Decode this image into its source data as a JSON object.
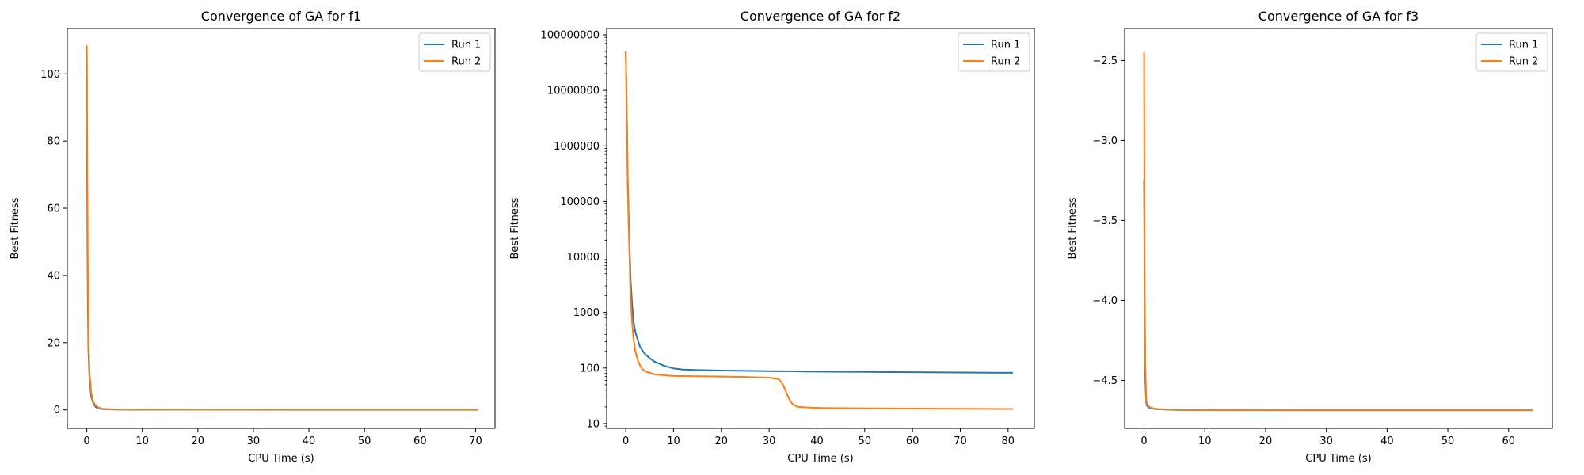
{
  "chart_data": [
    {
      "type": "line",
      "title": "Convergence of GA for f1",
      "xlabel": "CPU Time (s)",
      "ylabel": "Best Fitness",
      "xlim": [
        -3.5,
        73.5
      ],
      "ylim": [
        -5.5,
        113.5
      ],
      "yscale": "linear",
      "xticks": [
        0,
        10,
        20,
        30,
        40,
        50,
        60,
        70
      ],
      "yticks": [
        0,
        20,
        40,
        60,
        80,
        100
      ],
      "grid": false,
      "legend": "top-right",
      "series": [
        {
          "name": "Run 1",
          "color": "#1f77b4",
          "x": [
            0,
            0.05,
            0.1,
            0.2,
            0.3,
            0.5,
            0.8,
            1.2,
            1.6,
            2.0,
            2.5,
            3,
            5,
            10,
            20,
            40,
            60,
            70.5
          ],
          "y": [
            108,
            80,
            55,
            30,
            18,
            9,
            4,
            1.8,
            0.9,
            0.5,
            0.3,
            0.2,
            0.1,
            0.05,
            0.03,
            0.02,
            0.02,
            0.02
          ]
        },
        {
          "name": "Run 2",
          "color": "#ff7f0e",
          "x": [
            0,
            0.05,
            0.1,
            0.2,
            0.3,
            0.5,
            0.8,
            1.2,
            1.6,
            2.0,
            2.5,
            3,
            5,
            10,
            20,
            40,
            60,
            70.5
          ],
          "y": [
            108.5,
            95,
            70,
            40,
            22,
            11,
            5,
            2.2,
            1.4,
            0.8,
            0.5,
            0.3,
            0.15,
            0.08,
            0.05,
            0.04,
            0.03,
            0.03
          ]
        }
      ]
    },
    {
      "type": "line",
      "title": "Convergence of GA for f2",
      "xlabel": "CPU Time (s)",
      "ylabel": "Best Fitness",
      "xlim": [
        -4.0,
        85.5
      ],
      "ylim": [
        8.2,
        130000000
      ],
      "yscale": "log",
      "xticks": [
        0,
        10,
        20,
        30,
        40,
        50,
        60,
        70,
        80
      ],
      "yticks": [
        10,
        100,
        1000,
        10000,
        100000,
        1000000,
        10000000,
        100000000
      ],
      "ytick_labels": [
        "10",
        "100",
        "1000",
        "10000",
        "100000",
        "1000000",
        "10000000",
        "100000000"
      ],
      "grid": false,
      "legend": "top-right",
      "series": [
        {
          "name": "Run 1",
          "color": "#1f77b4",
          "x": [
            0,
            0.2,
            0.4,
            0.6,
            0.8,
            1.0,
            1.3,
            1.6,
            2.0,
            2.5,
            3,
            4,
            5,
            6,
            8,
            10,
            12,
            15,
            20,
            25,
            30,
            35,
            40,
            50,
            60,
            70,
            81
          ],
          "y": [
            50000000,
            5000000,
            300000,
            60000,
            15000,
            4000,
            1500,
            700,
            450,
            320,
            240,
            180,
            150,
            130,
            110,
            98,
            94,
            92,
            90,
            89,
            88,
            87,
            86,
            85,
            84,
            83,
            82
          ]
        },
        {
          "name": "Run 2",
          "color": "#ff7f0e",
          "x": [
            0,
            0.2,
            0.4,
            0.6,
            0.8,
            1.0,
            1.3,
            1.6,
            2.0,
            2.5,
            3,
            3.5,
            4,
            5,
            6,
            8,
            10,
            15,
            20,
            25,
            30,
            32,
            32.8,
            33.5,
            34,
            34.5,
            35,
            36,
            38,
            40,
            42,
            50,
            60,
            70,
            81
          ],
          "y": [
            50000000,
            4000000,
            200000,
            40000,
            9000,
            2000,
            700,
            350,
            200,
            140,
            110,
            95,
            88,
            82,
            77,
            74,
            72,
            71,
            70,
            69,
            67,
            63,
            52,
            38,
            30,
            25,
            22,
            20,
            19.5,
            19.2,
            19,
            18.8,
            18.6,
            18.5,
            18.3
          ]
        }
      ]
    },
    {
      "type": "line",
      "title": "Convergence of GA for f3",
      "xlabel": "CPU Time (s)",
      "ylabel": "Best Fitness",
      "xlim": [
        -3.2,
        67.2
      ],
      "ylim": [
        -4.8,
        -2.3
      ],
      "yscale": "linear",
      "xticks": [
        0,
        10,
        20,
        30,
        40,
        50,
        60
      ],
      "yticks": [
        -4.5,
        -4.0,
        -3.5,
        -3.0,
        -2.5
      ],
      "ytick_labels": [
        "−4.5",
        "−4.0",
        "−3.5",
        "−3.0",
        "−2.5"
      ],
      "grid": false,
      "legend": "top-right",
      "series": [
        {
          "name": "Run 1",
          "color": "#1f77b4",
          "x": [
            0,
            0.05,
            0.1,
            0.2,
            0.35,
            0.5,
            1,
            2,
            5,
            10,
            30,
            50,
            64
          ],
          "y": [
            -3.25,
            -3.6,
            -4.1,
            -4.5,
            -4.64,
            -4.66,
            -4.675,
            -4.68,
            -4.685,
            -4.686,
            -4.687,
            -4.687,
            -4.687
          ]
        },
        {
          "name": "Run 2",
          "color": "#ff7f0e",
          "x": [
            0,
            0.05,
            0.1,
            0.2,
            0.35,
            0.5,
            1,
            2,
            5,
            10,
            30,
            50,
            64
          ],
          "y": [
            -2.45,
            -3.2,
            -3.9,
            -4.4,
            -4.62,
            -4.65,
            -4.67,
            -4.678,
            -4.684,
            -4.686,
            -4.687,
            -4.687,
            -4.687
          ]
        }
      ]
    }
  ]
}
